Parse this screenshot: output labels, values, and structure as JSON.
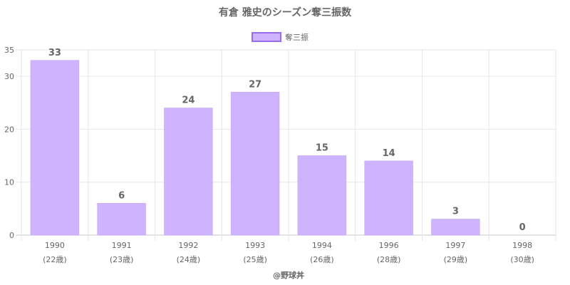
{
  "colors": {
    "bar_fill": "#ceb4ff",
    "bar_stroke": "#c9aefc",
    "legend_fill": "#ceb4ff",
    "legend_stroke": "#9b6cf0",
    "text": "#666666"
  },
  "chart_data": {
    "type": "bar",
    "title": "有倉 雅史のシーズン奪三振数",
    "legend": {
      "position": "top",
      "entries": [
        "奪三振"
      ]
    },
    "categories": [
      "1990",
      "1991",
      "1992",
      "1993",
      "1994",
      "1996",
      "1997",
      "1998"
    ],
    "category_sublabels": [
      "(22歳)",
      "(23歳)",
      "(24歳)",
      "(25歳)",
      "(26歳)",
      "(28歳)",
      "(29歳)",
      "(30歳)"
    ],
    "series": [
      {
        "name": "奪三振",
        "values": [
          33,
          6,
          24,
          27,
          15,
          14,
          3,
          0
        ]
      }
    ],
    "y_ticks": [
      0,
      10,
      20,
      30,
      35
    ],
    "ylim": [
      0,
      35
    ],
    "grid": true,
    "credit": "@野球丼"
  }
}
